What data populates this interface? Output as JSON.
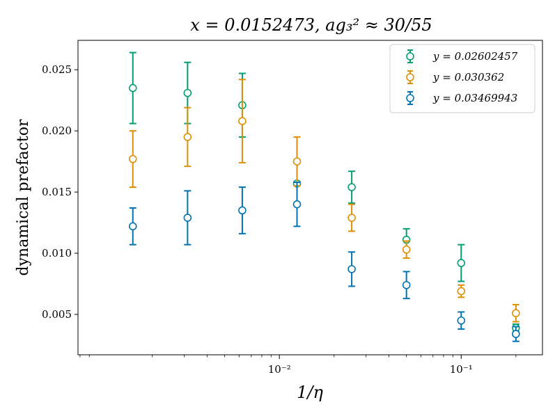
{
  "chart_data": {
    "type": "scatter",
    "title": "x = 0.0152473,  ag₃² ≈ 30/55",
    "xlabel": "1/η",
    "ylabel": "dynamical prefactor",
    "xscale": "log",
    "xlim": [
      0.00078,
      0.28
    ],
    "ylim": [
      0.0017,
      0.0274
    ],
    "x_ticks": [
      {
        "value": 0.01,
        "label": "10⁻²"
      },
      {
        "value": 0.1,
        "label": "10⁻¹"
      }
    ],
    "y_ticks": [
      {
        "value": 0.005,
        "label": "0.005"
      },
      {
        "value": 0.01,
        "label": "0.010"
      },
      {
        "value": 0.015,
        "label": "0.015"
      },
      {
        "value": 0.02,
        "label": "0.020"
      },
      {
        "value": 0.025,
        "label": "0.025"
      }
    ],
    "grid": false,
    "legend_position": "top-right",
    "series": [
      {
        "name": "y = 0.02602457",
        "color": "#029e73",
        "points": [
          {
            "x": 0.0015625,
            "y": 0.0235,
            "err": 0.0029
          },
          {
            "x": 0.003125,
            "y": 0.0231,
            "err": 0.0025
          },
          {
            "x": 0.00625,
            "y": 0.0221,
            "err": 0.0026
          },
          {
            "x": 0.0125,
            "y": 0.0157,
            "err": 0.00015
          },
          {
            "x": 0.025,
            "y": 0.0154,
            "err": 0.0013
          },
          {
            "x": 0.05,
            "y": 0.0111,
            "err": 0.0009
          },
          {
            "x": 0.1,
            "y": 0.0092,
            "err": 0.0015
          },
          {
            "x": 0.2,
            "y": 0.0039,
            "err": 0.0003
          }
        ]
      },
      {
        "name": "y = 0.030362",
        "color": "#de8f05",
        "points": [
          {
            "x": 0.0015625,
            "y": 0.0177,
            "err": 0.0023
          },
          {
            "x": 0.003125,
            "y": 0.0195,
            "err": 0.0024
          },
          {
            "x": 0.00625,
            "y": 0.0208,
            "err": 0.0034
          },
          {
            "x": 0.0125,
            "y": 0.0175,
            "err": 0.002
          },
          {
            "x": 0.025,
            "y": 0.0129,
            "err": 0.0011
          },
          {
            "x": 0.05,
            "y": 0.0103,
            "err": 0.0007
          },
          {
            "x": 0.1,
            "y": 0.0069,
            "err": 0.0005
          },
          {
            "x": 0.2,
            "y": 0.0051,
            "err": 0.0007
          }
        ]
      },
      {
        "name": "y = 0.03469943",
        "color": "#0173b2",
        "points": [
          {
            "x": 0.0015625,
            "y": 0.0122,
            "err": 0.0015
          },
          {
            "x": 0.003125,
            "y": 0.0129,
            "err": 0.0022
          },
          {
            "x": 0.00625,
            "y": 0.0135,
            "err": 0.0019
          },
          {
            "x": 0.0125,
            "y": 0.014,
            "err": 0.0018
          },
          {
            "x": 0.025,
            "y": 0.0087,
            "err": 0.0014
          },
          {
            "x": 0.05,
            "y": 0.0074,
            "err": 0.0011
          },
          {
            "x": 0.1,
            "y": 0.0045,
            "err": 0.0007
          },
          {
            "x": 0.2,
            "y": 0.0034,
            "err": 0.0006
          }
        ]
      }
    ]
  }
}
